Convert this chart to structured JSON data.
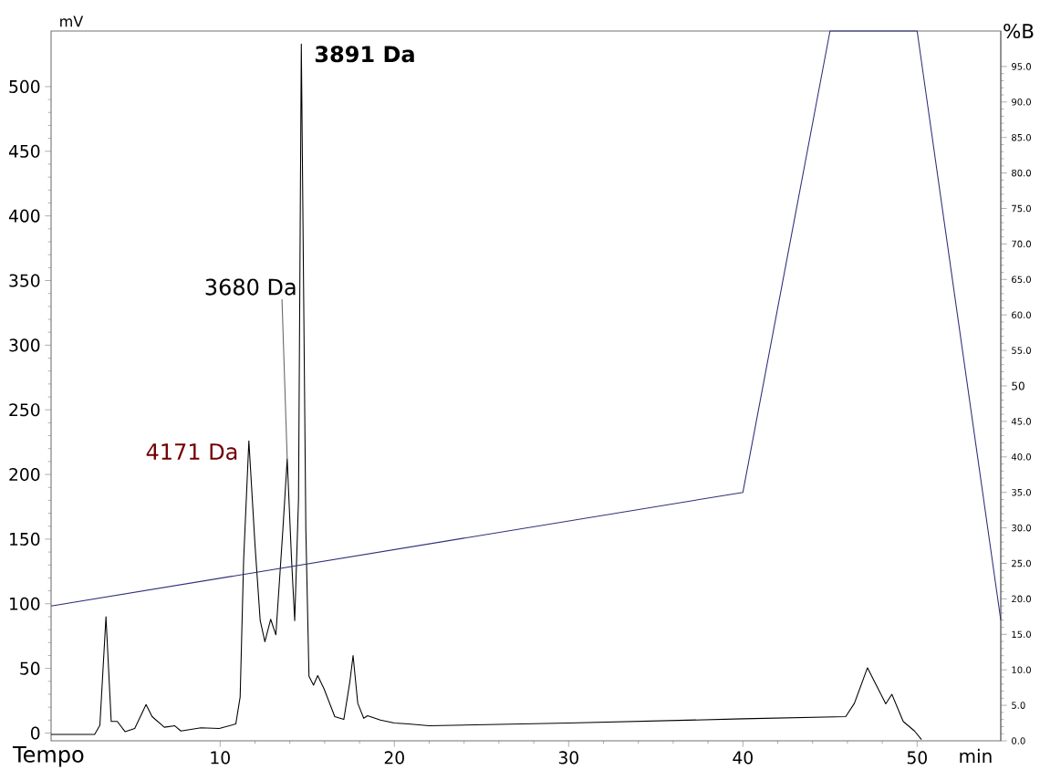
{
  "chart_data": {
    "type": "line",
    "xlabel": "Tempo",
    "ylabel": "mV",
    "y2label": "%B",
    "xlim": [
      0.3,
      54.8
    ],
    "xticks": [
      10,
      20,
      30,
      40,
      50
    ],
    "ylim": [
      -6,
      543
    ],
    "yticks": [
      0,
      50,
      100,
      150,
      200,
      250,
      300,
      350,
      400,
      450,
      500
    ],
    "y2lim": [
      0,
      100
    ],
    "y2ticks": [
      {
        "value": 0,
        "label": "0.0"
      },
      {
        "value": 5,
        "label": "5.0"
      },
      {
        "value": 10,
        "label": "10.0"
      },
      {
        "value": 15,
        "label": "15.0"
      },
      {
        "value": 20,
        "label": "20.0"
      },
      {
        "value": 25,
        "label": "25.0"
      },
      {
        "value": 30,
        "label": "30.0"
      },
      {
        "value": 35,
        "label": "35.0"
      },
      {
        "value": 40,
        "label": "40.0"
      },
      {
        "value": 45,
        "label": "45.0"
      },
      {
        "value": 50,
        "label": "50"
      },
      {
        "value": 55,
        "label": "55.0"
      },
      {
        "value": 60,
        "label": "60.0"
      },
      {
        "value": 65,
        "label": "65.0"
      },
      {
        "value": 70,
        "label": "70.0"
      },
      {
        "value": 75,
        "label": "75.0"
      },
      {
        "value": 80,
        "label": "80.0"
      },
      {
        "value": 85,
        "label": "85.0"
      },
      {
        "value": 90,
        "label": "90.0"
      },
      {
        "value": 95,
        "label": "95.0"
      }
    ],
    "marker": "none",
    "series": [
      {
        "color": "#000000",
        "x": [
          0.3,
          2.8,
          3.1,
          3.45,
          3.75,
          4.1,
          4.55,
          5.1,
          5.75,
          6.1,
          6.8,
          7.4,
          7.75,
          8.9,
          9.95,
          10.9,
          11.15,
          11.35,
          11.65,
          12.0,
          12.3,
          12.57,
          12.9,
          13.2,
          13.6,
          13.85,
          14.1,
          14.28,
          14.5,
          14.66,
          14.92,
          15.1,
          15.36,
          15.6,
          15.97,
          16.58,
          17.1,
          17.45,
          17.63,
          17.9,
          18.24,
          18.46,
          19.2,
          20.0,
          20.8,
          22.0,
          30.0,
          40.0,
          45.9,
          46.4,
          47.15,
          48.2,
          48.55,
          49.2,
          49.85,
          50.25
        ],
        "values": [
          -1,
          -1,
          6,
          90,
          9,
          9,
          1,
          3.5,
          22,
          12.7,
          4.5,
          5.6,
          1.6,
          4,
          3.5,
          7,
          28,
          134,
          226,
          146,
          87,
          70.6,
          88,
          76,
          157,
          212,
          134,
          87,
          181,
          533,
          157,
          44,
          37,
          44.5,
          34,
          12.7,
          10.6,
          40,
          60,
          23,
          11.5,
          13.4,
          10,
          7.7,
          7,
          5.6,
          7.7,
          11,
          12.7,
          23,
          50.5,
          22.6,
          30,
          9,
          1.6,
          -5
        ]
      },
      {
        "color": "#2e2e7a",
        "axis": "y2",
        "x": [
          0.3,
          40,
          45,
          50,
          54.8
        ],
        "values": [
          19,
          35,
          100,
          100,
          17
        ]
      }
    ],
    "annotations": [
      {
        "text": "4171 Da",
        "x": 11.65,
        "y": 226
      },
      {
        "text": "3680 Da",
        "x": 13.85,
        "y": 212
      },
      {
        "text": "3891 Da",
        "x": 14.66,
        "y": 533
      },
      "min"
    ]
  }
}
